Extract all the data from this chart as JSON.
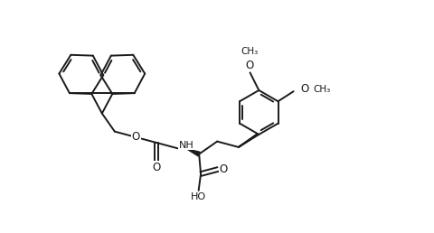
{
  "bg": "#ffffff",
  "lc": "#1a1a1a",
  "lw": 1.4,
  "fs": 8.0,
  "figsize": [
    4.81,
    2.58
  ],
  "dpi": 100,
  "BL": 0.48,
  "xlim": [
    0,
    9.62
  ],
  "ylim": [
    0,
    5.16
  ]
}
